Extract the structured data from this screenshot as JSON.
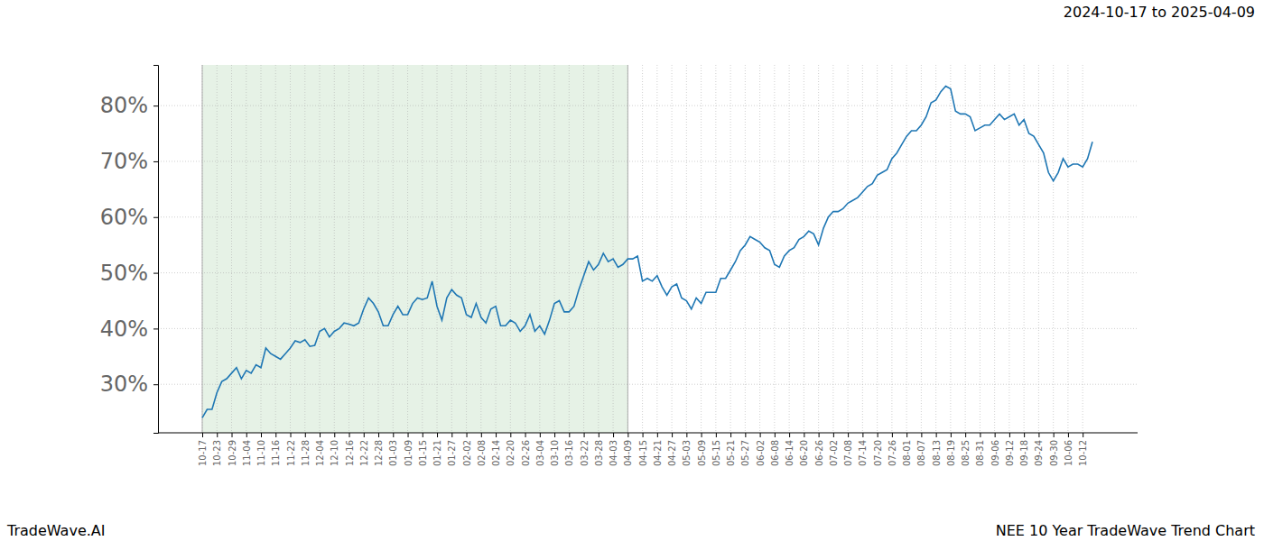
{
  "chart_data": {
    "type": "line",
    "title": "NEE 10 Year TradeWave Trend Chart",
    "subtitle": "2024-10-17 to 2025-04-09",
    "annotations": [
      "TradeWave.AI"
    ],
    "highlight": [
      "10-17",
      "04-09"
    ],
    "categories": [
      "10-17",
      null,
      null,
      "10-23",
      null,
      null,
      "10-29",
      null,
      null,
      "11-04",
      null,
      null,
      "11-10",
      null,
      null,
      "11-16",
      null,
      null,
      "11-22",
      null,
      null,
      "11-28",
      null,
      null,
      "12-04",
      null,
      null,
      "12-10",
      null,
      null,
      "12-16",
      null,
      null,
      "12-22",
      null,
      null,
      "12-28",
      null,
      null,
      "01-03",
      null,
      null,
      "01-09",
      null,
      null,
      "01-15",
      null,
      null,
      "01-21",
      null,
      null,
      "01-27",
      null,
      null,
      "02-02",
      null,
      null,
      "02-08",
      null,
      null,
      "02-14",
      null,
      null,
      "02-20",
      null,
      null,
      "02-26",
      null,
      null,
      "03-04",
      null,
      null,
      "03-10",
      null,
      null,
      "03-16",
      null,
      null,
      "03-22",
      null,
      null,
      "03-28",
      null,
      null,
      "04-03",
      null,
      null,
      "04-09",
      null,
      null,
      "04-15",
      null,
      null,
      "04-21",
      null,
      null,
      "04-27",
      null,
      null,
      "05-03",
      null,
      null,
      "05-09",
      null,
      null,
      "05-15",
      null,
      null,
      "05-21",
      null,
      null,
      "05-27",
      null,
      null,
      "06-02",
      null,
      null,
      "06-08",
      null,
      null,
      "06-14",
      null,
      null,
      "06-20",
      null,
      null,
      "06-26",
      null,
      null,
      "07-02",
      null,
      null,
      "07-08",
      null,
      null,
      "07-14",
      null,
      null,
      "07-20",
      null,
      null,
      "07-26",
      null,
      null,
      "08-01",
      null,
      null,
      "08-07",
      null,
      null,
      "08-13",
      null,
      null,
      "08-19",
      null,
      null,
      "08-25",
      null,
      null,
      "08-31",
      null,
      null,
      "09-06",
      null,
      null,
      "09-12",
      null,
      null,
      "09-18",
      null,
      null,
      "09-24",
      null,
      null,
      "09-30",
      null,
      null,
      "10-06",
      null,
      null,
      "10-12",
      null,
      null
    ],
    "series": [
      {
        "name": "NEE",
        "color": "#1f77b4",
        "values": [
          24,
          25.5,
          25.5,
          28.5,
          30.5,
          31,
          32,
          33,
          31,
          32.5,
          32,
          33.5,
          33,
          36.5,
          35.5,
          35,
          34.5,
          35.5,
          36.5,
          37.8,
          37.5,
          38,
          36.8,
          37,
          39.5,
          40,
          38.5,
          39.5,
          40,
          41,
          40.8,
          40.5,
          41,
          43.5,
          45.5,
          44.5,
          43,
          40.5,
          40.5,
          42.5,
          44,
          42.5,
          42.5,
          44.5,
          45.5,
          45.2,
          45.5,
          48.5,
          44,
          41.5,
          45.5,
          47,
          46,
          45.5,
          42.5,
          42,
          44.5,
          42,
          41,
          43.5,
          44,
          40.5,
          40.5,
          41.5,
          41,
          39.5,
          40.5,
          42.5,
          39.5,
          40.5,
          39,
          41.5,
          44.5,
          45,
          43,
          43,
          44,
          47,
          49.5,
          52,
          50.5,
          51.5,
          53.5,
          52,
          52.5,
          51,
          51.5,
          52.5,
          52.5,
          53,
          48.5,
          49,
          48.5,
          49.5,
          47.5,
          46,
          47.5,
          48,
          45.5,
          45,
          43.5,
          45.5,
          44.5,
          46.5,
          46.5,
          46.5,
          49,
          49,
          50.5,
          52,
          54,
          55,
          56.5,
          56,
          55.5,
          54.5,
          54,
          51.5,
          51,
          53,
          54,
          54.5,
          56,
          56.5,
          57.5,
          57,
          55,
          58,
          60,
          61,
          61,
          61.5,
          62.5,
          63,
          63.5,
          64.5,
          65.5,
          66,
          67.5,
          68,
          68.5,
          70.5,
          71.5,
          73,
          74.5,
          75.5,
          75.5,
          76.5,
          78,
          80.5,
          81,
          82.5,
          83.5,
          83,
          79,
          78.5,
          78.5,
          78,
          75.5,
          76,
          76.5,
          76.5,
          77.5,
          78.5,
          77.5,
          78,
          78.5,
          76.5,
          77.5,
          75,
          74.5,
          73,
          71.5,
          68,
          66.5,
          68,
          70.5,
          69,
          69.5,
          69.5,
          69,
          70.5,
          73.5
        ]
      }
    ],
    "ylim": [
      21.3,
      87.3
    ],
    "yticks": [
      {
        "value": 30,
        "label": "30%"
      },
      {
        "value": 40,
        "label": "40%"
      },
      {
        "value": 50,
        "label": "50%"
      },
      {
        "value": 60,
        "label": "60%"
      },
      {
        "value": 70,
        "label": "70%"
      },
      {
        "value": 80,
        "label": "80%"
      }
    ],
    "grid": true
  }
}
